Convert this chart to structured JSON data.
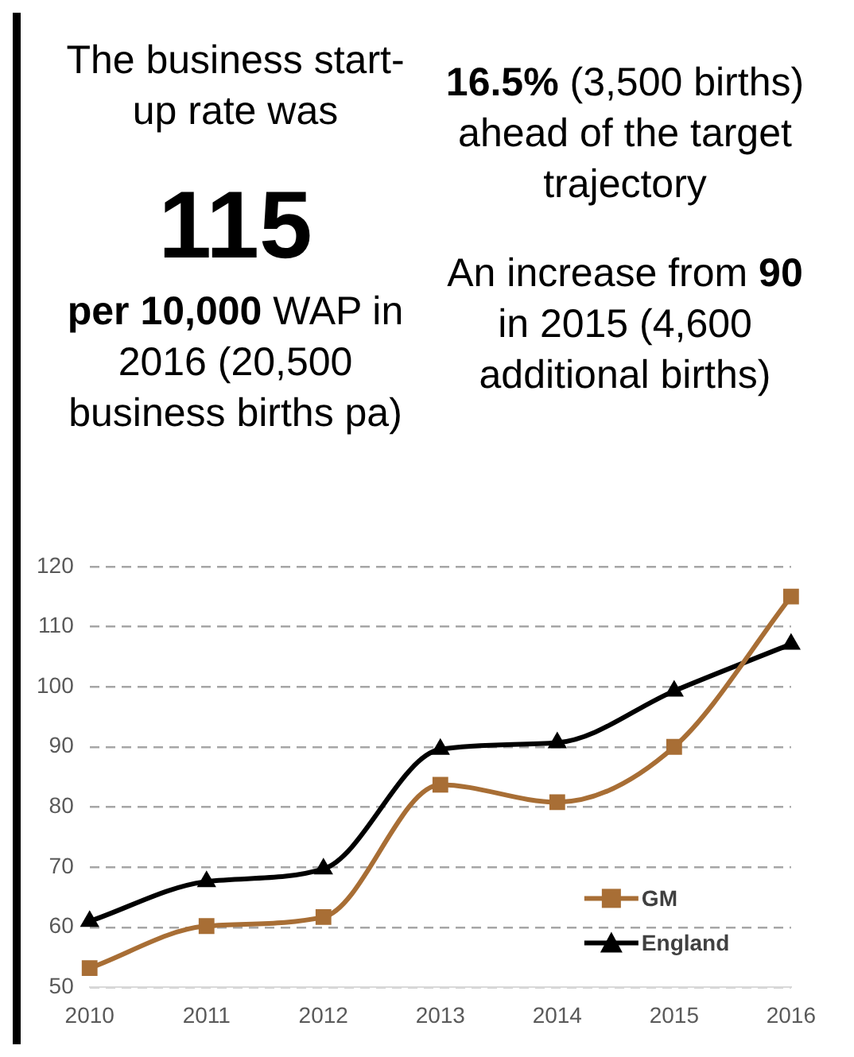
{
  "chart_data": {
    "type": "line",
    "annotations": [
      "The business start-up rate was",
      "115",
      "per 10,000",
      "WAP in 2016 (20,500 business births pa)",
      "16.5%",
      "(3,500 births) ahead of the target trajectory",
      "An increase from",
      "90",
      "in 2015 (4,600 additional births)"
    ],
    "categories": [
      "2010",
      "2011",
      "2012",
      "2013",
      "2014",
      "2015",
      "2016"
    ],
    "series": [
      {
        "name": "GM",
        "color": "#a86e35",
        "marker": "square",
        "values": [
          53.2,
          60.2,
          61.7,
          83.7,
          80.8,
          90,
          115
        ]
      },
      {
        "name": "England",
        "color": "#000000",
        "marker": "triangle",
        "values": [
          61,
          67.6,
          69.7,
          89.6,
          90.7,
          99.3,
          107.1
        ]
      }
    ],
    "ylim": [
      50,
      120
    ],
    "yticks": [
      50,
      60,
      70,
      80,
      90,
      100,
      110,
      120
    ],
    "grid": "y",
    "legend": "bottom right",
    "line_style": "solid"
  }
}
